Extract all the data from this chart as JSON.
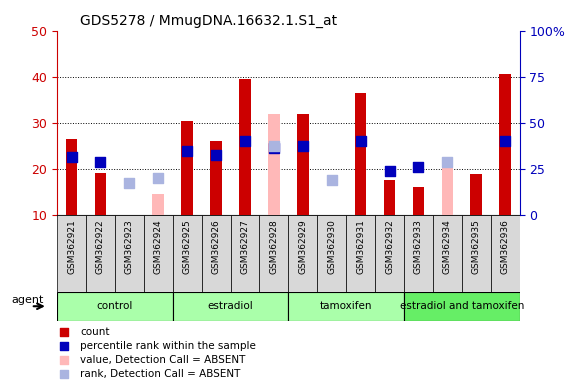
{
  "title": "GDS5278 / MmugDNA.16632.1.S1_at",
  "samples": [
    "GSM362921",
    "GSM362922",
    "GSM362923",
    "GSM362924",
    "GSM362925",
    "GSM362926",
    "GSM362927",
    "GSM362928",
    "GSM362929",
    "GSM362930",
    "GSM362931",
    "GSM362932",
    "GSM362933",
    "GSM362934",
    "GSM362935",
    "GSM362936"
  ],
  "group_labels": [
    "control",
    "estradiol",
    "tamoxifen",
    "estradiol and tamoxifen"
  ],
  "group_ranges": [
    [
      0,
      4
    ],
    [
      4,
      8
    ],
    [
      8,
      12
    ],
    [
      12,
      16
    ]
  ],
  "group_colors": [
    "#aaffaa",
    "#aaffaa",
    "#aaffaa",
    "#66ee66"
  ],
  "count_values": [
    26.5,
    19.2,
    null,
    null,
    30.5,
    26.0,
    39.5,
    null,
    32.0,
    null,
    36.5,
    17.5,
    16.0,
    null,
    19.0,
    40.5
  ],
  "rank_values": [
    22.5,
    21.5,
    null,
    null,
    24.0,
    23.0,
    26.0,
    24.5,
    25.0,
    null,
    26.0,
    19.5,
    20.5,
    null,
    null,
    26.0
  ],
  "absent_count_values": [
    null,
    null,
    null,
    14.5,
    null,
    null,
    null,
    32.0,
    null,
    null,
    null,
    null,
    null,
    20.5,
    null,
    null
  ],
  "absent_rank_values": [
    null,
    null,
    17.0,
    18.0,
    null,
    null,
    null,
    25.0,
    null,
    17.5,
    null,
    null,
    null,
    21.5,
    null,
    null
  ],
  "ylim_left": [
    10,
    50
  ],
  "ylim_right": [
    0,
    100
  ],
  "yticks_left": [
    10,
    20,
    30,
    40,
    50
  ],
  "yticks_right": [
    0,
    25,
    50,
    75,
    100
  ],
  "yticklabels_right": [
    "0",
    "25",
    "50",
    "75",
    "100%"
  ],
  "left_axis_color": "#cc0000",
  "right_axis_color": "#0000bb",
  "bar_color": "#cc0000",
  "absent_bar_color": "#ffb8b8",
  "rank_color": "#0000bb",
  "absent_rank_color": "#aab4e0",
  "bar_width": 0.4,
  "rank_marker_size": 45,
  "grid_lines": [
    20,
    30,
    40
  ],
  "legend_items": [
    {
      "color": "#cc0000",
      "label": "count"
    },
    {
      "color": "#0000bb",
      "label": "percentile rank within the sample"
    },
    {
      "color": "#ffb8b8",
      "label": "value, Detection Call = ABSENT"
    },
    {
      "color": "#aab4e0",
      "label": "rank, Detection Call = ABSENT"
    }
  ]
}
